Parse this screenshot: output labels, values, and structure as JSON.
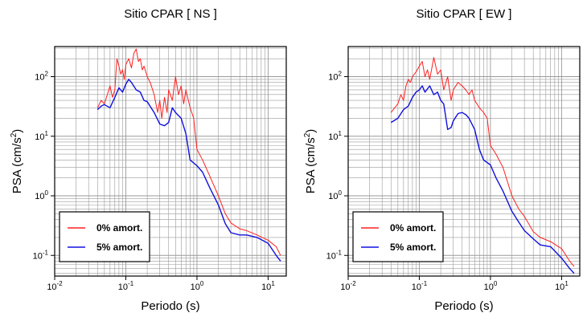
{
  "colors": {
    "undamped": "#ff2020",
    "damped": "#1010e0",
    "grid": "#9a9a9a",
    "frame": "#000000"
  },
  "chart_data": [
    {
      "type": "line",
      "title": "Sitio CPAR [ NS ]",
      "xlabel": "Periodo (s)",
      "ylabel_main": "PSA (cm/s",
      "ylabel_sup": "2",
      "ylabel_tail": ")",
      "x_scale": "log",
      "y_scale": "log",
      "xlim": [
        0.01,
        18
      ],
      "ylim": [
        0.045,
        320
      ],
      "grid": true,
      "legend_position": "bottom-left",
      "x_ticks": [
        {
          "base": "10",
          "exp": "-2",
          "value": 0.01
        },
        {
          "base": "10",
          "exp": "-1",
          "value": 0.1
        },
        {
          "base": "10",
          "exp": "0",
          "value": 1
        },
        {
          "base": "10",
          "exp": "1",
          "value": 10
        }
      ],
      "y_ticks": [
        {
          "base": "10",
          "exp": "-1",
          "value": 0.1
        },
        {
          "base": "10",
          "exp": "0",
          "value": 1
        },
        {
          "base": "10",
          "exp": "1",
          "value": 10
        },
        {
          "base": "10",
          "exp": "2",
          "value": 100
        }
      ],
      "series": [
        {
          "name": "0% amort.",
          "color": "#ff2020",
          "x": [
            0.04,
            0.045,
            0.05,
            0.055,
            0.06,
            0.065,
            0.07,
            0.075,
            0.08,
            0.085,
            0.09,
            0.095,
            0.1,
            0.11,
            0.12,
            0.13,
            0.14,
            0.15,
            0.16,
            0.17,
            0.18,
            0.2,
            0.22,
            0.25,
            0.28,
            0.3,
            0.32,
            0.35,
            0.38,
            0.4,
            0.45,
            0.5,
            0.55,
            0.6,
            0.65,
            0.7,
            0.8,
            0.9,
            1.0,
            1.2,
            1.5,
            2.0,
            2.5,
            3.0,
            4.0,
            5.0,
            7.0,
            10.0,
            13.0,
            15.0
          ],
          "y": [
            30,
            40,
            35,
            50,
            70,
            45,
            60,
            200,
            150,
            110,
            130,
            90,
            160,
            200,
            140,
            250,
            290,
            180,
            200,
            130,
            150,
            100,
            80,
            50,
            25,
            40,
            20,
            45,
            25,
            60,
            40,
            100,
            50,
            70,
            35,
            60,
            30,
            20,
            6,
            4,
            2.2,
            1.0,
            0.5,
            0.35,
            0.28,
            0.26,
            0.22,
            0.18,
            0.14,
            0.1
          ]
        },
        {
          "name": "5% amort.",
          "color": "#1010e0",
          "x": [
            0.04,
            0.045,
            0.05,
            0.06,
            0.07,
            0.08,
            0.09,
            0.1,
            0.11,
            0.12,
            0.14,
            0.16,
            0.18,
            0.2,
            0.25,
            0.3,
            0.35,
            0.4,
            0.45,
            0.5,
            0.6,
            0.7,
            0.8,
            1.0,
            1.2,
            1.5,
            2.0,
            2.5,
            3.0,
            4.0,
            5.0,
            7.0,
            10.0,
            13.0,
            15.0
          ],
          "y": [
            28,
            32,
            34,
            30,
            45,
            65,
            55,
            75,
            90,
            80,
            60,
            55,
            40,
            38,
            25,
            16,
            15,
            17,
            30,
            25,
            20,
            11,
            4,
            3.2,
            2.5,
            1.4,
            0.7,
            0.34,
            0.24,
            0.22,
            0.22,
            0.2,
            0.16,
            0.1,
            0.08
          ]
        }
      ]
    },
    {
      "type": "line",
      "title": "Sitio CPAR [ EW ]",
      "xlabel": "Periodo (s)",
      "ylabel_main": "PSA (cm/s",
      "ylabel_sup": "2",
      "ylabel_tail": ")",
      "x_scale": "log",
      "y_scale": "log",
      "xlim": [
        0.01,
        18
      ],
      "ylim": [
        0.045,
        320
      ],
      "grid": true,
      "legend_position": "bottom-left",
      "x_ticks": [
        {
          "base": "10",
          "exp": "-2",
          "value": 0.01
        },
        {
          "base": "10",
          "exp": "-1",
          "value": 0.1
        },
        {
          "base": "10",
          "exp": "0",
          "value": 1
        },
        {
          "base": "10",
          "exp": "1",
          "value": 10
        }
      ],
      "y_ticks": [
        {
          "base": "10",
          "exp": "-1",
          "value": 0.1
        },
        {
          "base": "10",
          "exp": "0",
          "value": 1
        },
        {
          "base": "10",
          "exp": "1",
          "value": 10
        },
        {
          "base": "10",
          "exp": "2",
          "value": 100
        }
      ],
      "series": [
        {
          "name": "0% amort.",
          "color": "#ff2020",
          "x": [
            0.04,
            0.045,
            0.05,
            0.055,
            0.06,
            0.065,
            0.07,
            0.075,
            0.08,
            0.09,
            0.1,
            0.11,
            0.12,
            0.13,
            0.14,
            0.16,
            0.18,
            0.2,
            0.22,
            0.25,
            0.28,
            0.3,
            0.35,
            0.4,
            0.45,
            0.5,
            0.55,
            0.6,
            0.7,
            0.8,
            0.9,
            1.0,
            1.2,
            1.5,
            2.0,
            2.5,
            3.0,
            4.0,
            5.0,
            7.0,
            10.0,
            13.0,
            15.0
          ],
          "y": [
            25,
            30,
            35,
            50,
            40,
            70,
            90,
            80,
            100,
            120,
            150,
            180,
            100,
            130,
            90,
            210,
            110,
            130,
            60,
            100,
            40,
            60,
            80,
            70,
            60,
            50,
            60,
            40,
            30,
            25,
            20,
            7,
            5,
            3,
            1.0,
            0.6,
            0.45,
            0.25,
            0.2,
            0.17,
            0.13,
            0.08,
            0.065
          ]
        },
        {
          "name": "5% amort.",
          "color": "#1010e0",
          "x": [
            0.04,
            0.05,
            0.06,
            0.07,
            0.08,
            0.09,
            0.1,
            0.11,
            0.12,
            0.14,
            0.16,
            0.18,
            0.2,
            0.22,
            0.25,
            0.28,
            0.3,
            0.35,
            0.4,
            0.45,
            0.5,
            0.6,
            0.7,
            0.8,
            1.0,
            1.2,
            1.5,
            2.0,
            2.5,
            3.0,
            4.0,
            5.0,
            7.0,
            10.0,
            13.0,
            15.0
          ],
          "y": [
            17,
            20,
            28,
            32,
            45,
            55,
            60,
            70,
            55,
            70,
            50,
            55,
            40,
            35,
            13,
            14,
            18,
            24,
            25,
            23,
            20,
            13,
            6,
            4,
            3.3,
            2.0,
            1.2,
            0.55,
            0.36,
            0.26,
            0.19,
            0.15,
            0.14,
            0.09,
            0.06,
            0.05
          ]
        }
      ]
    }
  ]
}
